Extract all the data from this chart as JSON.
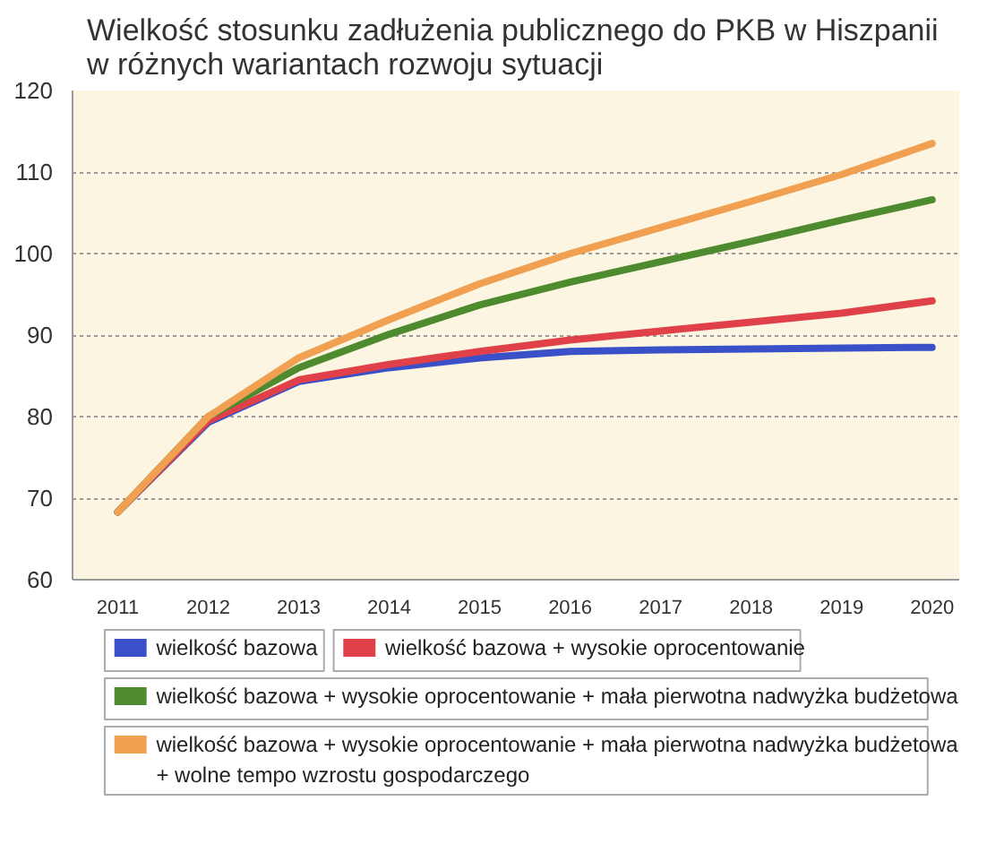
{
  "chart_data": {
    "type": "line",
    "title": "Wielkość stosunku zadłużenia publicznego do PKB w Hiszpanii w różnych wariantach rozwoju sytuacji",
    "x": [
      2011,
      2012,
      2013,
      2014,
      2015,
      2016,
      2017,
      2018,
      2019,
      2020
    ],
    "xlim": [
      2010.5,
      2020.3
    ],
    "xticks": [
      2011,
      2012,
      2013,
      2014,
      2015,
      2016,
      2017,
      2018,
      2019,
      2020
    ],
    "ylim": [
      60,
      120
    ],
    "yticks": [
      60,
      70,
      80,
      90,
      100,
      110,
      120
    ],
    "grid": "y",
    "legend": "bottom",
    "line_style": "solid",
    "marker": "none",
    "series": [
      {
        "name": "wielkość bazowa",
        "color": "#3a50c8",
        "values": [
          68.3,
          79.3,
          84.3,
          86.0,
          87.2,
          88.0,
          88.2,
          88.3,
          88.4,
          88.5
        ]
      },
      {
        "name": "wielkość bazowa + wysokie oprocentowanie",
        "color": "#e04048",
        "values": [
          68.3,
          79.5,
          84.5,
          86.4,
          88.0,
          89.4,
          90.5,
          91.6,
          92.7,
          94.2
        ]
      },
      {
        "name": "wielkość bazowa + wysokie oprocentowanie + mała pierwotna nadwyżka budżetowa",
        "color": "#4e8a2e",
        "values": [
          68.3,
          80.0,
          86.0,
          90.1,
          93.7,
          96.5,
          99.0,
          101.5,
          104.1,
          106.6
        ]
      },
      {
        "name": "wielkość bazowa + wysokie oprocentowanie + mała pierwotna nadwyżka budżetowa + wolne tempo wzrostu gospodarczego",
        "color": "#f0a050",
        "values": [
          68.3,
          80.0,
          87.2,
          91.9,
          96.3,
          100.0,
          103.2,
          106.4,
          109.7,
          113.5
        ]
      }
    ]
  }
}
